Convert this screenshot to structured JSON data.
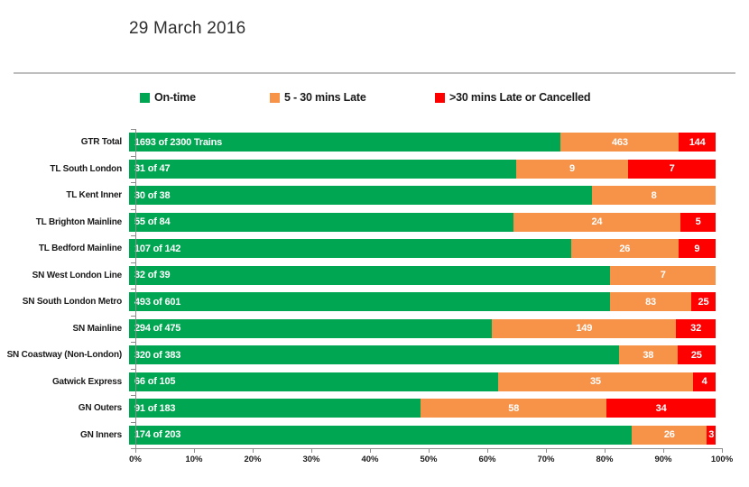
{
  "title": "29 March 2016",
  "legend": {
    "items": [
      {
        "label": "On-time",
        "color": "#00A651"
      },
      {
        "label": "5 - 30 mins Late",
        "color": "#F79249"
      },
      {
        "label": ">30 mins Late or Cancelled",
        "color": "#FF0000"
      }
    ]
  },
  "chart_data": {
    "type": "bar",
    "orientation": "horizontal",
    "stacked": "100%",
    "title": "29 March 2016",
    "grid": false,
    "legend_position": "top",
    "categories": [
      "GTR Total",
      "TL South London",
      "TL Kent Inner",
      "TL Brighton Mainline",
      "TL Bedford Mainline",
      "SN West London Line",
      "SN South London Metro",
      "SN Mainline",
      "SN Coastway (Non-London)",
      "Gatwick Express",
      "GN Outers",
      "GN Inners"
    ],
    "series": [
      {
        "name": "On-time",
        "color": "#00A651",
        "values": [
          1693,
          31,
          30,
          55,
          107,
          32,
          493,
          294,
          320,
          66,
          91,
          174
        ]
      },
      {
        "name": "5 - 30 mins Late",
        "color": "#F79249",
        "values": [
          463,
          9,
          8,
          24,
          26,
          7,
          83,
          149,
          38,
          35,
          58,
          26
        ]
      },
      {
        "name": ">30 mins Late or Cancelled",
        "color": "#FF0000",
        "values": [
          144,
          7,
          0,
          5,
          9,
          0,
          25,
          32,
          25,
          4,
          34,
          3
        ]
      }
    ],
    "totals": [
      2300,
      47,
      38,
      84,
      142,
      39,
      601,
      475,
      383,
      105,
      183,
      203
    ],
    "on_time_labels": [
      "1693 of 2300 Trains",
      "31 of 47",
      "30 of 38",
      "55 of 84",
      "107 of 142",
      "32 of 39",
      "493 of 601",
      "294 of 475",
      "320 of 383",
      "66 of 105",
      "91 of 183",
      "174 of 203"
    ],
    "x_ticks": [
      "0%",
      "10%",
      "20%",
      "30%",
      "40%",
      "50%",
      "60%",
      "70%",
      "80%",
      "90%",
      "100%"
    ],
    "xlim": [
      0,
      100
    ]
  }
}
